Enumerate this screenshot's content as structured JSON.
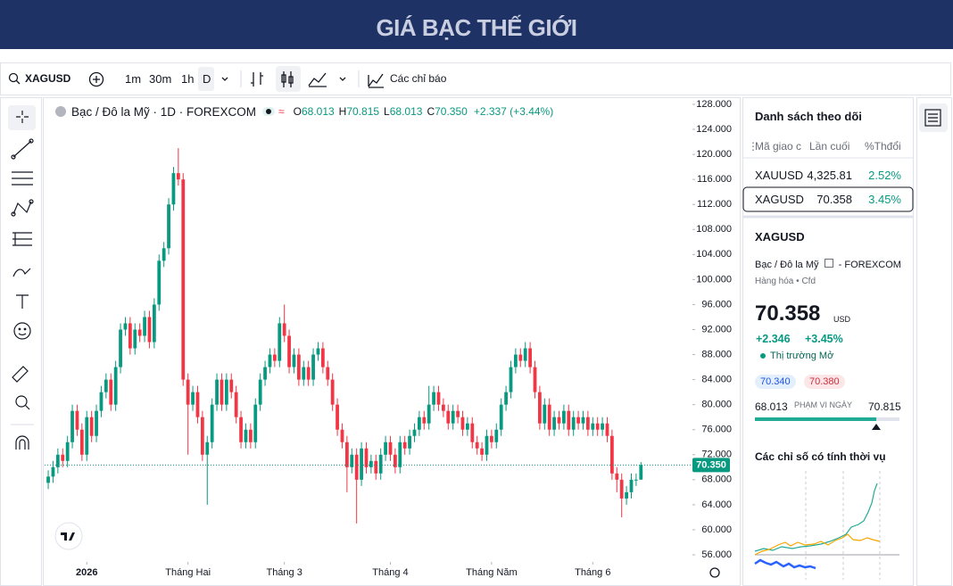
{
  "header": {
    "title": "GIÁ BẠC THẾ GIỚI"
  },
  "toolbar": {
    "symbol": "XAGUSD",
    "intervals": [
      "1m",
      "30m",
      "1h",
      "D"
    ],
    "indicators": "Các chỉ báo"
  },
  "legend": {
    "name": "Bạc / Đô la Mỹ · 1D · FOREXCOM",
    "o_label": "O",
    "o": "68.013",
    "h_label": "H",
    "h": "70.815",
    "l_label": "L",
    "l": "68.013",
    "c_label": "C",
    "c": "70.350",
    "change": "+2.337 (+3.44%)"
  },
  "chart_data": {
    "type": "candlestick",
    "up_color": "#089981",
    "down_color": "#f23645",
    "ylim": [
      56,
      128
    ],
    "yticks": [
      {
        "value": 56,
        "label": "56.000"
      },
      {
        "value": 60,
        "label": "60.000"
      },
      {
        "value": 64,
        "label": "64.000"
      },
      {
        "value": 68,
        "label": "68.000"
      },
      {
        "value": 72,
        "label": "72.000"
      },
      {
        "value": 76,
        "label": "76.000"
      },
      {
        "value": 80,
        "label": "80.000"
      },
      {
        "value": 84,
        "label": "84.000"
      },
      {
        "value": 88,
        "label": "88.000"
      },
      {
        "value": 92,
        "label": "92.000"
      },
      {
        "value": 96,
        "label": "96.000"
      },
      {
        "value": 100,
        "label": "100.000"
      },
      {
        "value": 104,
        "label": "104.000"
      },
      {
        "value": 108,
        "label": "108.000"
      },
      {
        "value": 112,
        "label": "112.000"
      },
      {
        "value": 116,
        "label": "116.000"
      },
      {
        "value": 120,
        "label": "120.000"
      },
      {
        "value": 124,
        "label": "124.000"
      },
      {
        "value": 128,
        "label": "128.000"
      }
    ],
    "xlim": [
      -0.75,
      133.5
    ],
    "xticks": [
      {
        "value": 8,
        "label": "2026"
      },
      {
        "value": 29,
        "label": "Tháng Hai"
      },
      {
        "value": 49,
        "label": "Tháng 3"
      },
      {
        "value": 71,
        "label": "Tháng 4"
      },
      {
        "value": 92,
        "label": "Tháng Năm"
      },
      {
        "value": 113,
        "label": "Tháng 6"
      }
    ],
    "last_price": {
      "value": 70.35,
      "label": "70.350"
    },
    "open": [
      67.5,
      68.5,
      70,
      72,
      71,
      74,
      79,
      76,
      72,
      78,
      75,
      79,
      82,
      84,
      80,
      86,
      92,
      93,
      89,
      92,
      91,
      94,
      90,
      96,
      103,
      105,
      112,
      117,
      116,
      84,
      80,
      82,
      78,
      72,
      74,
      80,
      84,
      80,
      84,
      82,
      78,
      74,
      76,
      74,
      80,
      84,
      86,
      88,
      87,
      93,
      91,
      86,
      88,
      84,
      86,
      84,
      88,
      89,
      86,
      84,
      80,
      76,
      74,
      70,
      72,
      68,
      73,
      70,
      71,
      69,
      72,
      74,
      72,
      70,
      74,
      73,
      75,
      76,
      78,
      77,
      80,
      82,
      80,
      79,
      77,
      79,
      78,
      76,
      77,
      74,
      73,
      72,
      75,
      74,
      76,
      80,
      82,
      86,
      88,
      87,
      89,
      86,
      82,
      77,
      80,
      76,
      78,
      77,
      79,
      76,
      78,
      77,
      78,
      76,
      77,
      76,
      77,
      75,
      69,
      68,
      65,
      66,
      68,
      68.013
    ],
    "high": [
      69.5,
      71,
      73,
      73,
      75,
      80,
      80,
      77,
      79,
      79,
      80,
      83,
      85,
      85,
      87,
      93,
      94,
      94,
      93,
      93,
      95,
      95,
      97,
      104,
      106,
      113,
      118,
      121,
      117,
      85,
      83,
      83,
      79,
      75,
      81,
      85,
      85,
      85,
      85,
      83,
      79,
      77,
      77,
      81,
      85,
      87,
      89,
      89,
      94,
      96,
      92,
      89,
      89,
      87,
      87,
      89,
      90,
      90,
      87,
      85,
      81,
      77,
      75,
      73,
      73,
      74,
      74,
      72,
      72,
      73,
      75,
      75,
      73,
      75,
      75,
      76,
      77,
      79,
      79,
      83,
      83,
      83,
      81,
      80,
      80,
      80,
      79,
      78,
      78,
      75,
      74,
      76,
      76,
      77,
      81,
      83,
      87,
      89,
      89,
      90,
      90,
      87,
      83,
      81,
      81,
      79,
      79,
      80,
      80,
      79,
      79,
      79,
      79,
      78,
      78,
      78,
      78,
      76,
      70,
      69,
      67,
      69,
      69,
      70.815
    ],
    "low": [
      66.5,
      67.5,
      69,
      70,
      70,
      73,
      75,
      71,
      71,
      74,
      74,
      78,
      81,
      79,
      79,
      85,
      91,
      88,
      88,
      90,
      90,
      89,
      89,
      95,
      102,
      104,
      111,
      115,
      83,
      72,
      79,
      77,
      71,
      64,
      73,
      79,
      79,
      79,
      81,
      77,
      73,
      73,
      73,
      73,
      79,
      83,
      85,
      86,
      86,
      90,
      85,
      85,
      83,
      83,
      83,
      83,
      87,
      85,
      83,
      79,
      75,
      73,
      66,
      69,
      61,
      67,
      69,
      69,
      68,
      68,
      71,
      71,
      69,
      69,
      72,
      72,
      74,
      75,
      76,
      76,
      79,
      79,
      78,
      76,
      76,
      77,
      75,
      75,
      73,
      72,
      71,
      71,
      73,
      73,
      75,
      79,
      81,
      85,
      86,
      86,
      85,
      81,
      76,
      76,
      75,
      75,
      76,
      76,
      75,
      75,
      76,
      76,
      75,
      75,
      75,
      75,
      74,
      68,
      66,
      62,
      64,
      65,
      67,
      68.013
    ],
    "close": [
      68.5,
      70,
      72,
      71,
      74,
      79,
      76,
      72,
      78,
      75,
      79,
      82,
      84,
      80,
      86,
      92,
      93,
      89,
      92,
      91,
      94,
      90,
      96,
      103,
      105,
      112,
      117,
      116,
      84,
      80,
      82,
      78,
      72,
      74,
      80,
      84,
      80,
      84,
      82,
      78,
      74,
      76,
      74,
      80,
      84,
      86,
      88,
      87,
      93,
      91,
      86,
      88,
      84,
      86,
      84,
      88,
      89,
      86,
      84,
      80,
      76,
      74,
      70,
      72,
      68,
      73,
      70,
      71,
      69,
      72,
      74,
      72,
      70,
      74,
      73,
      75,
      76,
      78,
      77,
      80,
      82,
      80,
      79,
      77,
      79,
      78,
      76,
      77,
      74,
      73,
      72,
      75,
      74,
      76,
      80,
      82,
      86,
      88,
      87,
      89,
      86,
      82,
      77,
      80,
      76,
      78,
      77,
      79,
      76,
      78,
      77,
      78,
      76,
      77,
      76,
      77,
      75,
      69,
      68,
      65,
      66,
      68,
      68.013,
      70.35
    ]
  },
  "watchlist": {
    "title": "Danh sách theo dõi",
    "columns": [
      "Mã giao c",
      "Lần cuối",
      "%Thđổi"
    ],
    "rows": [
      [
        "XAUUSD",
        "4,325.81",
        "2.52%"
      ],
      [
        "XAGUSD",
        "70.358",
        "3.45%"
      ]
    ]
  },
  "details": {
    "symbol": "XAGUSD",
    "name": "Bạc / Đô la Mỹ",
    "separator": "-",
    "exchange": "FOREXCOM",
    "category": "Hàng hóa",
    "sub_type": "Cfd",
    "price": "70.358",
    "currency": "USD",
    "change": "+2.346",
    "change_pct": "+3.45%",
    "market_status": "Thị trường Mở",
    "bid": "70.340",
    "ask": "70.380",
    "range_low": "68.013",
    "range_label": "PHẠM VI NGÀY",
    "range_high": "70.815",
    "seasonal_title": "Các chỉ số có tính thời vụ"
  }
}
